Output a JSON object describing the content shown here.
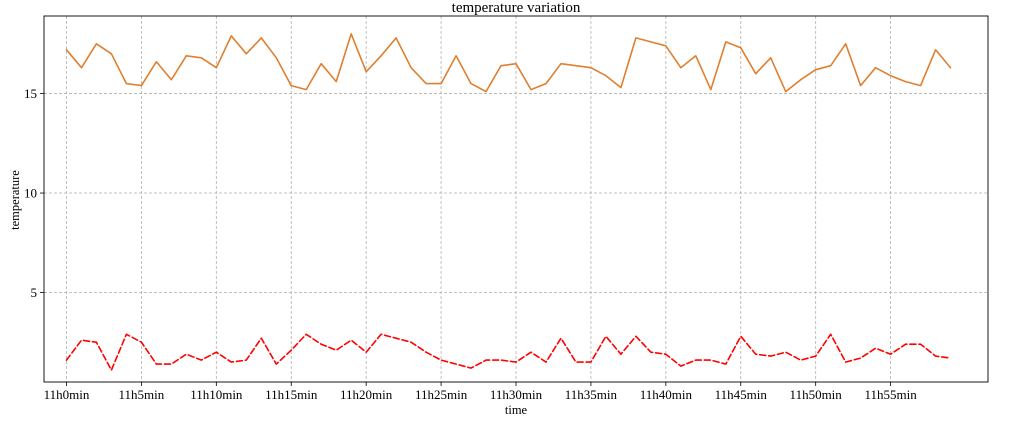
{
  "chart_data": {
    "type": "line",
    "title": "temperature variation",
    "xlabel": "time",
    "ylabel": "temperature",
    "x_unit": "minutes after 11h0min",
    "x_ticks": [
      {
        "value": 0,
        "label": "11h0min"
      },
      {
        "value": 5,
        "label": "11h5min"
      },
      {
        "value": 10,
        "label": "11h10min"
      },
      {
        "value": 15,
        "label": "11h15min"
      },
      {
        "value": 20,
        "label": "11h20min"
      },
      {
        "value": 25,
        "label": "11h25min"
      },
      {
        "value": 30,
        "label": "11h30min"
      },
      {
        "value": 35,
        "label": "11h35min"
      },
      {
        "value": 40,
        "label": "11h40min"
      },
      {
        "value": 45,
        "label": "11h45min"
      },
      {
        "value": 50,
        "label": "11h50min"
      },
      {
        "value": 55,
        "label": "11h55min"
      }
    ],
    "y_ticks": [
      5,
      10,
      15
    ],
    "xlim": [
      -1.5,
      61.5
    ],
    "ylim": [
      0.5,
      18.9
    ],
    "grid": true,
    "grid_style": "dashed",
    "x": [
      0,
      1,
      2,
      3,
      4,
      5,
      6,
      7,
      8,
      9,
      10,
      11,
      12,
      13,
      14,
      15,
      16,
      17,
      18,
      19,
      20,
      21,
      22,
      23,
      24,
      25,
      26,
      27,
      28,
      29,
      30,
      31,
      32,
      33,
      34,
      35,
      36,
      37,
      38,
      39,
      40,
      41,
      42,
      43,
      44,
      45,
      46,
      47,
      48,
      49,
      50,
      51,
      52,
      53,
      54,
      55,
      56,
      57,
      58,
      59
    ],
    "series": [
      {
        "color": "#E07F2F",
        "line_style": "solid",
        "values": [
          17.2,
          16.3,
          17.5,
          17.0,
          15.5,
          15.4,
          16.6,
          15.7,
          16.9,
          16.8,
          16.3,
          17.9,
          17.0,
          17.8,
          16.8,
          15.4,
          15.2,
          16.5,
          15.6,
          18.0,
          16.1,
          16.9,
          17.8,
          16.3,
          15.5,
          15.5,
          16.9,
          15.5,
          15.1,
          16.4,
          16.5,
          15.2,
          15.5,
          16.5,
          16.4,
          16.3,
          15.9,
          15.3,
          17.8,
          17.6,
          17.4,
          16.3,
          16.9,
          15.2,
          17.6,
          17.3,
          16.0,
          16.8,
          15.1,
          15.7,
          16.2,
          16.4,
          17.5,
          15.4,
          16.3,
          15.9,
          15.6,
          15.4,
          17.2,
          16.3
        ]
      },
      {
        "color": "#FF0000",
        "line_style": "dashed",
        "values": [
          1.6,
          2.6,
          2.5,
          1.1,
          2.9,
          2.5,
          1.4,
          1.4,
          1.9,
          1.6,
          2.0,
          1.5,
          1.6,
          2.7,
          1.4,
          2.1,
          2.9,
          2.4,
          2.1,
          2.6,
          2.0,
          2.9,
          2.7,
          2.5,
          2.0,
          1.6,
          1.4,
          1.2,
          1.6,
          1.6,
          1.5,
          2.0,
          1.5,
          2.7,
          1.5,
          1.5,
          2.8,
          1.9,
          2.8,
          2.0,
          1.9,
          1.3,
          1.6,
          1.6,
          1.4,
          2.8,
          1.9,
          1.8,
          2.0,
          1.6,
          1.8,
          2.9,
          1.5,
          1.7,
          2.2,
          1.9,
          2.4,
          2.4,
          1.8,
          1.7
        ]
      }
    ]
  }
}
